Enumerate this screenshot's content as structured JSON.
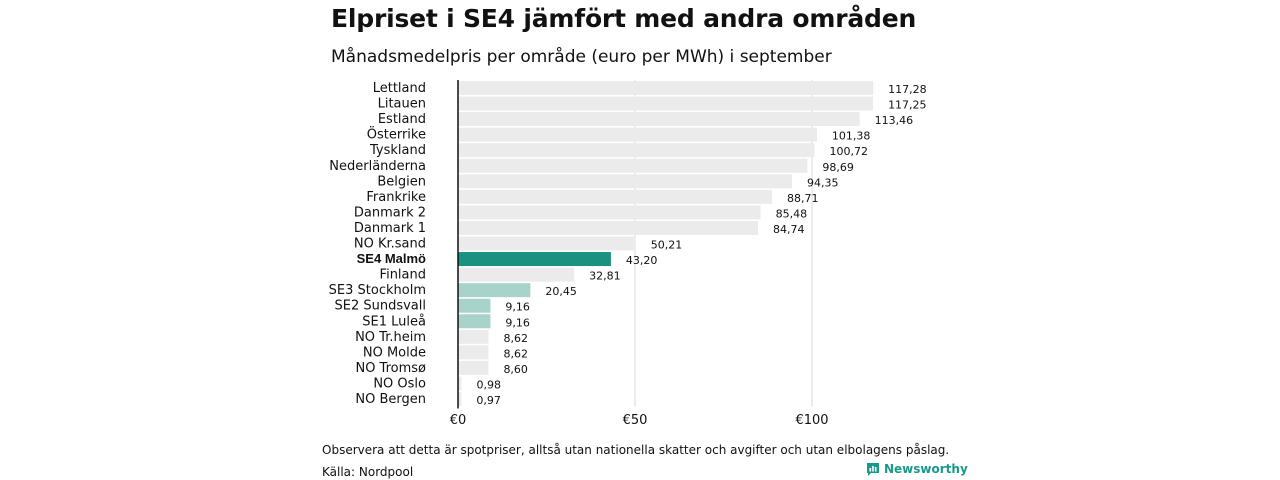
{
  "title": "Elpriset i SE4 jämfört med andra områden",
  "subtitle": "Månadsmedelpris per område (euro per MWh) i september",
  "note": "Observera att detta är spotpriser, alltså utan nationella skatter och avgifter och utan elbolagens påslag.",
  "source": "Källa: Nordpool",
  "brand": "Newsworthy",
  "colors": {
    "default_bar": "#ebebeb",
    "highlight_bar": "#1a9282",
    "swedish_bar": "#a8d3cb",
    "brand": "#1a9988"
  },
  "chart_data": {
    "type": "bar",
    "orientation": "horizontal",
    "title": "Elpriset i SE4 jämfört med andra områden",
    "subtitle": "Månadsmedelpris per område (euro per MWh) i september",
    "categories": [
      "Lettland",
      "Litauen",
      "Estland",
      "Österrike",
      "Tyskland",
      "Nederländerna",
      "Belgien",
      "Frankrike",
      "Danmark  2",
      "Danmark  1",
      "NO Kr.sand",
      "SE4 Malmö",
      "Finland",
      "SE3  Stockholm",
      "SE2  Sundsvall",
      "SE1  Luleå",
      "NO Tr.heim",
      "NO Molde",
      "NO Tromsø",
      "NO Oslo",
      "NO Bergen"
    ],
    "values": [
      117.28,
      117.25,
      113.46,
      101.38,
      100.72,
      98.69,
      94.35,
      88.71,
      85.48,
      84.74,
      50.21,
      43.2,
      32.81,
      20.45,
      9.16,
      9.16,
      8.62,
      8.62,
      8.6,
      0.98,
      0.97
    ],
    "value_labels": [
      "117,28",
      "117,25",
      "113,46",
      "101,38",
      "100,72",
      "98,69",
      "94,35",
      "88,71",
      "85,48",
      "84,74",
      "50,21",
      "43,20",
      "32,81",
      "20,45",
      "9,16",
      "9,16",
      "8,62",
      "8,62",
      "8,60",
      "0,98",
      "0,97"
    ],
    "highlight": [
      "normal",
      "normal",
      "normal",
      "normal",
      "normal",
      "normal",
      "normal",
      "normal",
      "normal",
      "normal",
      "normal",
      "highlight",
      "normal",
      "swedish",
      "swedish",
      "swedish",
      "normal",
      "normal",
      "normal",
      "normal",
      "normal"
    ],
    "xticks": [
      0,
      50,
      100
    ],
    "xtick_labels": [
      "€0",
      "€50",
      "€100"
    ],
    "xlim": [
      0,
      120
    ],
    "grid": true
  }
}
